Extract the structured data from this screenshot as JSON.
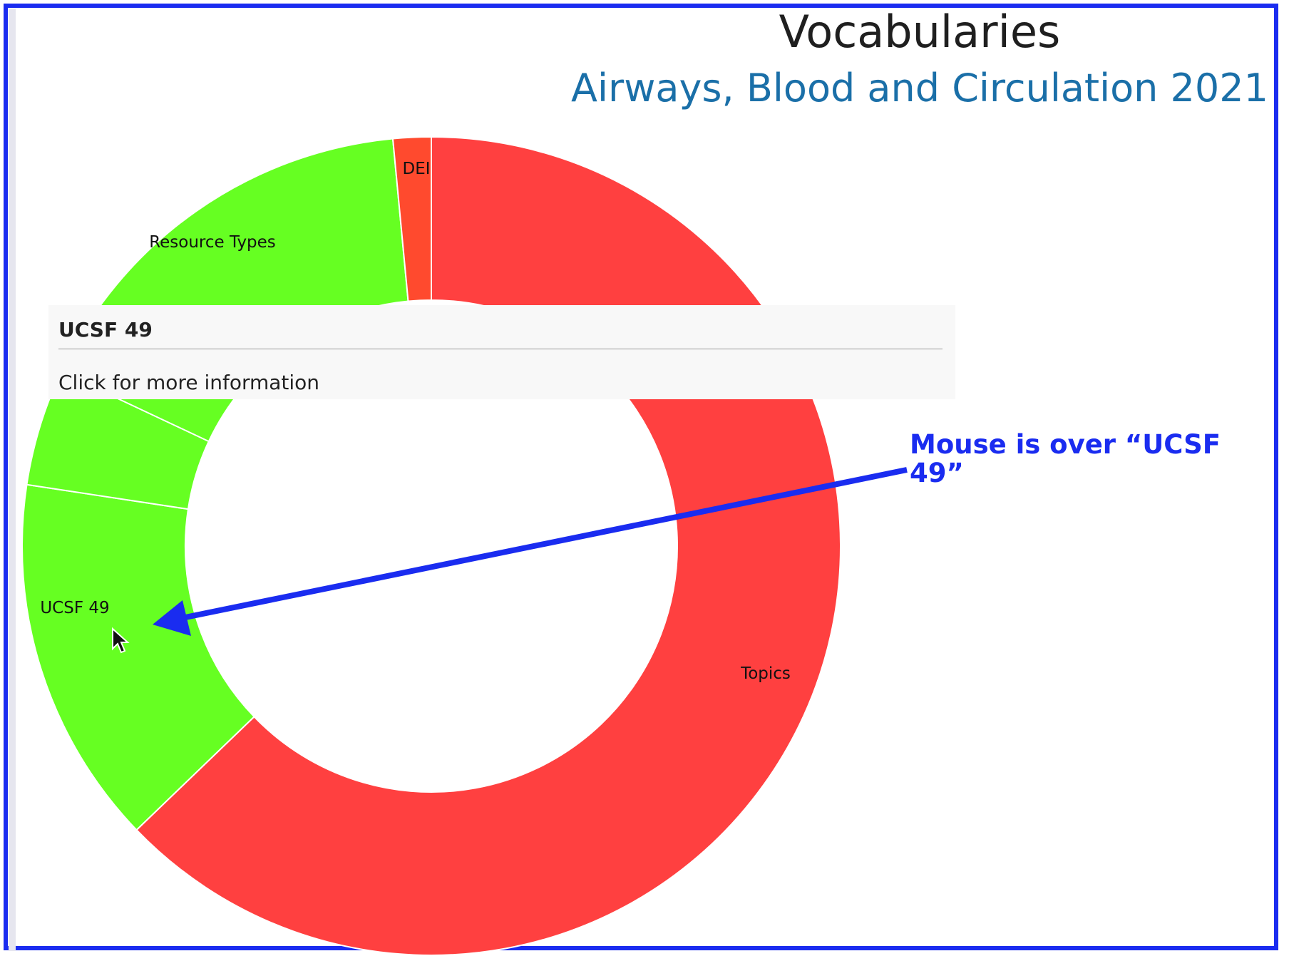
{
  "chart_data": {
    "type": "pie",
    "title": "Vocabularies",
    "subtitle": "Airways, Blood and Circulation 2021",
    "donut": true,
    "slices": [
      {
        "label": "Topics",
        "value": 62.8,
        "color": "#ff4040"
      },
      {
        "label": "UCSF 49",
        "value": 14.6,
        "color": "#66ff22"
      },
      {
        "label": "",
        "value": 4.6,
        "color": "#66ff22"
      },
      {
        "label": "Resource Types",
        "value": 16.5,
        "color": "#66ff22"
      },
      {
        "label": "DEI",
        "value": 1.5,
        "color": "#ff4a2e"
      }
    ]
  },
  "tooltip": {
    "title": "UCSF 49",
    "body": "Click for more information"
  },
  "annotation": {
    "text": "Mouse is over “UCSF 49”",
    "color": "#1a2cf0"
  },
  "icons": {
    "cursor": "mouse-pointer-icon"
  }
}
